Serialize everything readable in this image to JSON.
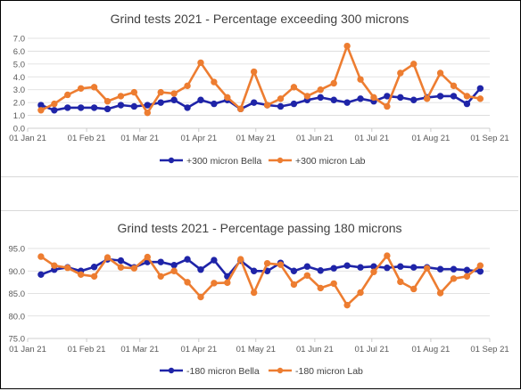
{
  "chart_data": [
    {
      "type": "line",
      "title": "Grind tests 2021 - Percentage exceeding 300 microns",
      "ylim": [
        0,
        7
      ],
      "yticks": [
        "0.0",
        "1.0",
        "2.0",
        "3.0",
        "4.0",
        "5.0",
        "6.0",
        "7.0"
      ],
      "xlim": [
        "2021-01-01",
        "2021-09-01"
      ],
      "xticks": [
        "01 Jan 21",
        "01 Feb 21",
        "01 Mar 21",
        "01 Apr 21",
        "01 May 21",
        "01 Jun 21",
        "01 Jul 21",
        "01 Aug 21",
        "01 Sep 21"
      ],
      "grid": true,
      "legend": "bottom",
      "series": [
        {
          "name": "+300 micron Bella",
          "color": "#1f24a8",
          "points": [
            [
              "2021-01-08",
              1.8
            ],
            [
              "2021-01-15",
              1.4
            ],
            [
              "2021-01-22",
              1.6
            ],
            [
              "2021-01-29",
              1.6
            ],
            [
              "2021-02-05",
              1.6
            ],
            [
              "2021-02-12",
              1.5
            ],
            [
              "2021-02-19",
              1.8
            ],
            [
              "2021-02-26",
              1.7
            ],
            [
              "2021-03-05",
              1.8
            ],
            [
              "2021-03-12",
              2.0
            ],
            [
              "2021-03-19",
              2.2
            ],
            [
              "2021-03-26",
              1.6
            ],
            [
              "2021-04-02",
              2.2
            ],
            [
              "2021-04-09",
              1.9
            ],
            [
              "2021-04-16",
              2.2
            ],
            [
              "2021-04-23",
              1.5
            ],
            [
              "2021-04-30",
              2.0
            ],
            [
              "2021-05-07",
              1.8
            ],
            [
              "2021-05-14",
              1.7
            ],
            [
              "2021-05-21",
              1.9
            ],
            [
              "2021-05-28",
              2.2
            ],
            [
              "2021-06-04",
              2.4
            ],
            [
              "2021-06-11",
              2.2
            ],
            [
              "2021-06-18",
              2.0
            ],
            [
              "2021-06-25",
              2.3
            ],
            [
              "2021-07-02",
              2.1
            ],
            [
              "2021-07-09",
              2.5
            ],
            [
              "2021-07-16",
              2.4
            ],
            [
              "2021-07-23",
              2.2
            ],
            [
              "2021-07-30",
              2.4
            ],
            [
              "2021-08-06",
              2.5
            ],
            [
              "2021-08-13",
              2.5
            ],
            [
              "2021-08-20",
              1.9
            ],
            [
              "2021-08-27",
              3.1
            ]
          ]
        },
        {
          "name": "+300 micron Lab",
          "color": "#ed7d31",
          "points": [
            [
              "2021-01-08",
              1.4
            ],
            [
              "2021-01-15",
              1.9
            ],
            [
              "2021-01-22",
              2.6
            ],
            [
              "2021-01-29",
              3.1
            ],
            [
              "2021-02-05",
              3.2
            ],
            [
              "2021-02-12",
              2.1
            ],
            [
              "2021-02-19",
              2.5
            ],
            [
              "2021-02-26",
              2.8
            ],
            [
              "2021-03-05",
              1.2
            ],
            [
              "2021-03-12",
              2.8
            ],
            [
              "2021-03-19",
              2.7
            ],
            [
              "2021-03-26",
              3.3
            ],
            [
              "2021-04-02",
              5.1
            ],
            [
              "2021-04-09",
              3.6
            ],
            [
              "2021-04-16",
              2.4
            ],
            [
              "2021-04-23",
              1.5
            ],
            [
              "2021-04-30",
              4.4
            ],
            [
              "2021-05-07",
              1.8
            ],
            [
              "2021-05-14",
              2.3
            ],
            [
              "2021-05-21",
              3.2
            ],
            [
              "2021-05-28",
              2.5
            ],
            [
              "2021-06-04",
              3.0
            ],
            [
              "2021-06-11",
              3.5
            ],
            [
              "2021-06-18",
              6.4
            ],
            [
              "2021-06-25",
              3.8
            ],
            [
              "2021-07-02",
              2.4
            ],
            [
              "2021-07-09",
              1.7
            ],
            [
              "2021-07-16",
              4.3
            ],
            [
              "2021-07-23",
              5.0
            ],
            [
              "2021-07-30",
              2.3
            ],
            [
              "2021-08-06",
              4.3
            ],
            [
              "2021-08-13",
              3.3
            ],
            [
              "2021-08-20",
              2.5
            ],
            [
              "2021-08-27",
              2.3
            ]
          ]
        }
      ]
    },
    {
      "type": "line",
      "title": "Grind tests 2021 - Percentage passing 180 microns",
      "ylim": [
        75,
        95
      ],
      "yticks": [
        "75.0",
        "80.0",
        "85.0",
        "90.0",
        "95.0"
      ],
      "xlim": [
        "2021-01-01",
        "2021-09-01"
      ],
      "xticks": [
        "01 Jan 21",
        "01 Feb 21",
        "01 Mar 21",
        "01 Apr 21",
        "01 May 21",
        "01 Jun 21",
        "01 Jul 21",
        "01 Aug 21",
        "01 Sep 21"
      ],
      "grid": true,
      "legend": "bottom",
      "series": [
        {
          "name": "-180 micron Bella",
          "color": "#1f24a8",
          "points": [
            [
              "2021-01-08",
              89.2
            ],
            [
              "2021-01-15",
              90.3
            ],
            [
              "2021-01-22",
              90.8
            ],
            [
              "2021-01-29",
              90.0
            ],
            [
              "2021-02-05",
              90.9
            ],
            [
              "2021-02-12",
              92.6
            ],
            [
              "2021-02-19",
              92.3
            ],
            [
              "2021-02-26",
              90.8
            ],
            [
              "2021-03-05",
              92.0
            ],
            [
              "2021-03-12",
              92.0
            ],
            [
              "2021-03-19",
              91.3
            ],
            [
              "2021-03-26",
              92.6
            ],
            [
              "2021-04-02",
              90.3
            ],
            [
              "2021-04-09",
              92.4
            ],
            [
              "2021-04-16",
              88.8
            ],
            [
              "2021-04-23",
              92.3
            ],
            [
              "2021-04-30",
              90.0
            ],
            [
              "2021-05-07",
              90.0
            ],
            [
              "2021-05-14",
              91.8
            ],
            [
              "2021-05-21",
              90.0
            ],
            [
              "2021-05-28",
              91.0
            ],
            [
              "2021-06-04",
              90.1
            ],
            [
              "2021-06-11",
              90.6
            ],
            [
              "2021-06-18",
              91.2
            ],
            [
              "2021-06-25",
              90.8
            ],
            [
              "2021-07-02",
              91.0
            ],
            [
              "2021-07-09",
              90.7
            ],
            [
              "2021-07-16",
              91.0
            ],
            [
              "2021-07-23",
              90.8
            ],
            [
              "2021-07-30",
              90.8
            ],
            [
              "2021-08-06",
              90.4
            ],
            [
              "2021-08-13",
              90.4
            ],
            [
              "2021-08-20",
              90.2
            ],
            [
              "2021-08-27",
              89.9
            ]
          ]
        },
        {
          "name": "-180 micron Lab",
          "color": "#ed7d31",
          "points": [
            [
              "2021-01-08",
              93.2
            ],
            [
              "2021-01-15",
              91.2
            ],
            [
              "2021-01-22",
              90.7
            ],
            [
              "2021-01-29",
              89.2
            ],
            [
              "2021-02-05",
              88.8
            ],
            [
              "2021-02-12",
              93.0
            ],
            [
              "2021-02-19",
              90.8
            ],
            [
              "2021-02-26",
              90.6
            ],
            [
              "2021-03-05",
              93.1
            ],
            [
              "2021-03-12",
              88.8
            ],
            [
              "2021-03-19",
              90.0
            ],
            [
              "2021-03-26",
              87.5
            ],
            [
              "2021-04-02",
              84.2
            ],
            [
              "2021-04-09",
              87.3
            ],
            [
              "2021-04-16",
              87.4
            ],
            [
              "2021-04-23",
              92.6
            ],
            [
              "2021-04-30",
              85.2
            ],
            [
              "2021-05-07",
              91.7
            ],
            [
              "2021-05-14",
              91.4
            ],
            [
              "2021-05-21",
              87.0
            ],
            [
              "2021-05-28",
              89.0
            ],
            [
              "2021-06-04",
              86.2
            ],
            [
              "2021-06-11",
              87.2
            ],
            [
              "2021-06-18",
              82.4
            ],
            [
              "2021-06-25",
              85.2
            ],
            [
              "2021-07-02",
              89.8
            ],
            [
              "2021-07-09",
              93.4
            ],
            [
              "2021-07-16",
              87.6
            ],
            [
              "2021-07-23",
              86.0
            ],
            [
              "2021-07-30",
              90.6
            ],
            [
              "2021-08-06",
              85.1
            ],
            [
              "2021-08-13",
              88.3
            ],
            [
              "2021-08-20",
              88.8
            ],
            [
              "2021-08-27",
              91.2
            ]
          ]
        }
      ]
    }
  ]
}
